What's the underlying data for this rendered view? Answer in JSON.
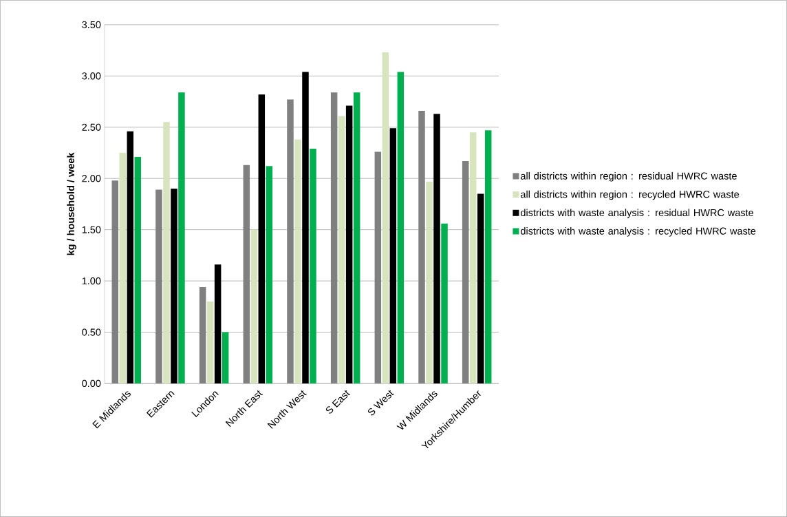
{
  "chart_data": {
    "type": "bar",
    "ylabel": "kg / household / week",
    "categories": [
      "E Midlands",
      "Eastern",
      "London",
      "North East",
      "North West",
      "S East",
      "S West",
      "W Midlands",
      "Yorkshire/Humber"
    ],
    "series": [
      {
        "name": "all districts within region : residual HWRC waste",
        "color": "#808080",
        "values": [
          1.98,
          1.89,
          0.94,
          2.13,
          2.77,
          2.84,
          2.26,
          2.66,
          2.17
        ]
      },
      {
        "name": "all districts within region : recycled HWRC waste",
        "color": "#d7e4bd",
        "values": [
          2.25,
          2.55,
          0.8,
          1.5,
          2.38,
          2.61,
          3.23,
          1.97,
          2.45
        ]
      },
      {
        "name": "districts with waste analysis : residual HWRC waste",
        "color": "#000000",
        "values": [
          2.46,
          1.9,
          1.16,
          2.82,
          3.04,
          2.71,
          2.49,
          2.63,
          1.85
        ]
      },
      {
        "name": "districts with waste analysis : recycled HWRC waste",
        "color": "#00b050",
        "values": [
          2.21,
          2.84,
          0.5,
          2.12,
          2.29,
          2.84,
          3.04,
          1.56,
          2.47
        ]
      }
    ],
    "ylim": [
      0,
      3.5
    ],
    "yticks": [
      {
        "value": 0,
        "label": "0.00"
      },
      {
        "value": 0.5,
        "label": "0.50"
      },
      {
        "value": 1,
        "label": "1.00"
      },
      {
        "value": 1.5,
        "label": "1.50"
      },
      {
        "value": 2,
        "label": "2.00"
      },
      {
        "value": 2.5,
        "label": "2.50"
      },
      {
        "value": 3,
        "label": "3.00"
      },
      {
        "value": 3.5,
        "label": "3.50"
      }
    ],
    "grid": "y",
    "legend": "right"
  }
}
